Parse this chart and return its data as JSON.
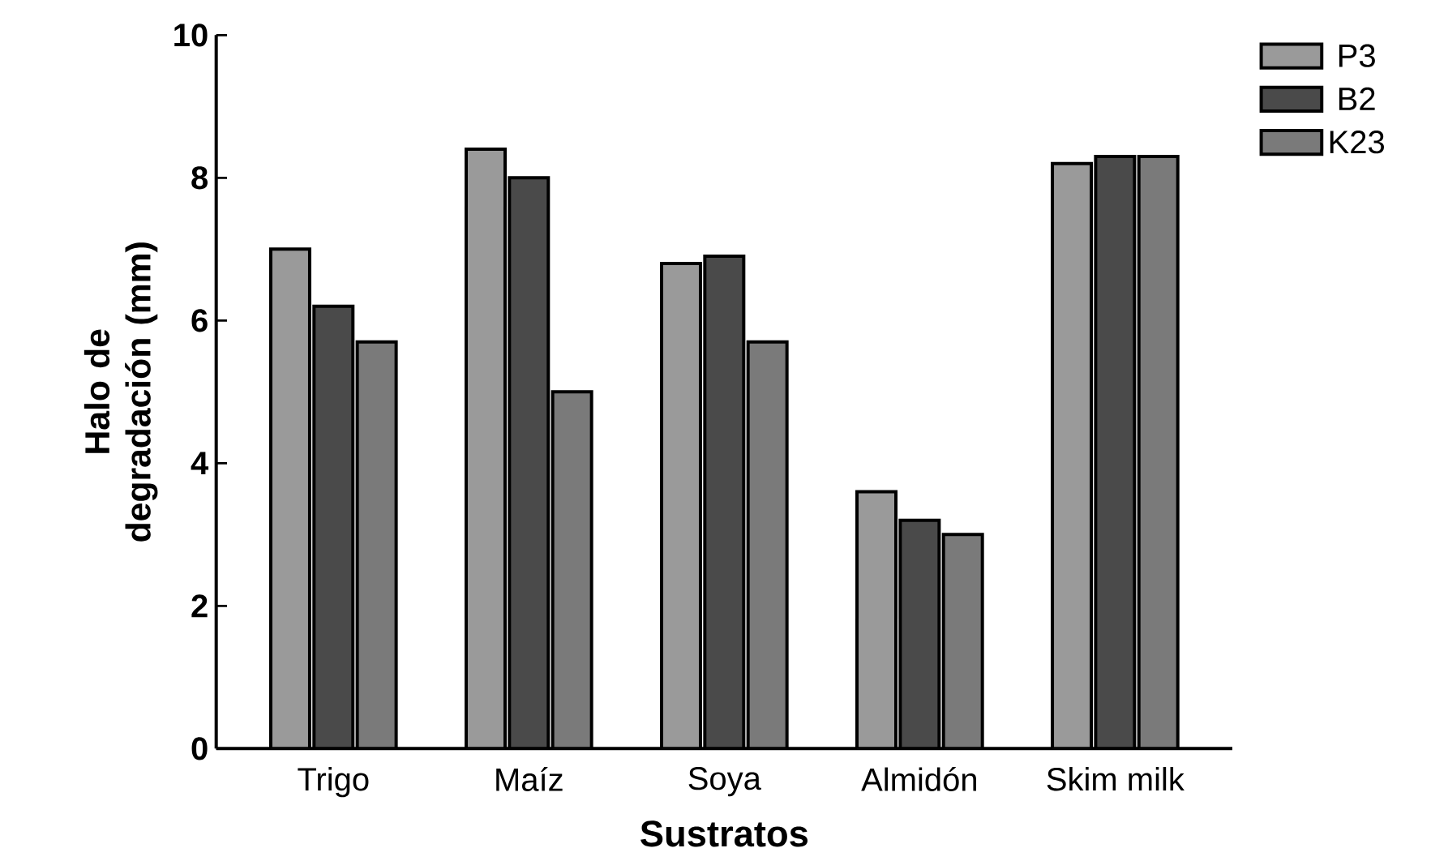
{
  "chart_data": {
    "type": "bar",
    "xlabel": "Sustratos",
    "ylabel": "Halo de degradación (mm)",
    "categories": [
      "Trigo",
      "Maíz",
      "Soya",
      "Almidón",
      "Skim milk"
    ],
    "series": [
      {
        "name": "P3",
        "color": "#9a9a9a",
        "values": [
          7.0,
          8.4,
          6.8,
          3.6,
          8.2
        ]
      },
      {
        "name": "B2",
        "color": "#4a4a4a",
        "values": [
          6.2,
          8.0,
          6.9,
          3.2,
          8.3
        ]
      },
      {
        "name": "K23",
        "color": "#7a7a7a",
        "values": [
          5.7,
          5.0,
          5.7,
          3.0,
          8.3
        ]
      }
    ],
    "ylim": [
      0,
      10
    ],
    "yticks": [
      0,
      2,
      4,
      6,
      8,
      10
    ],
    "grid": false,
    "legend": "top right"
  }
}
